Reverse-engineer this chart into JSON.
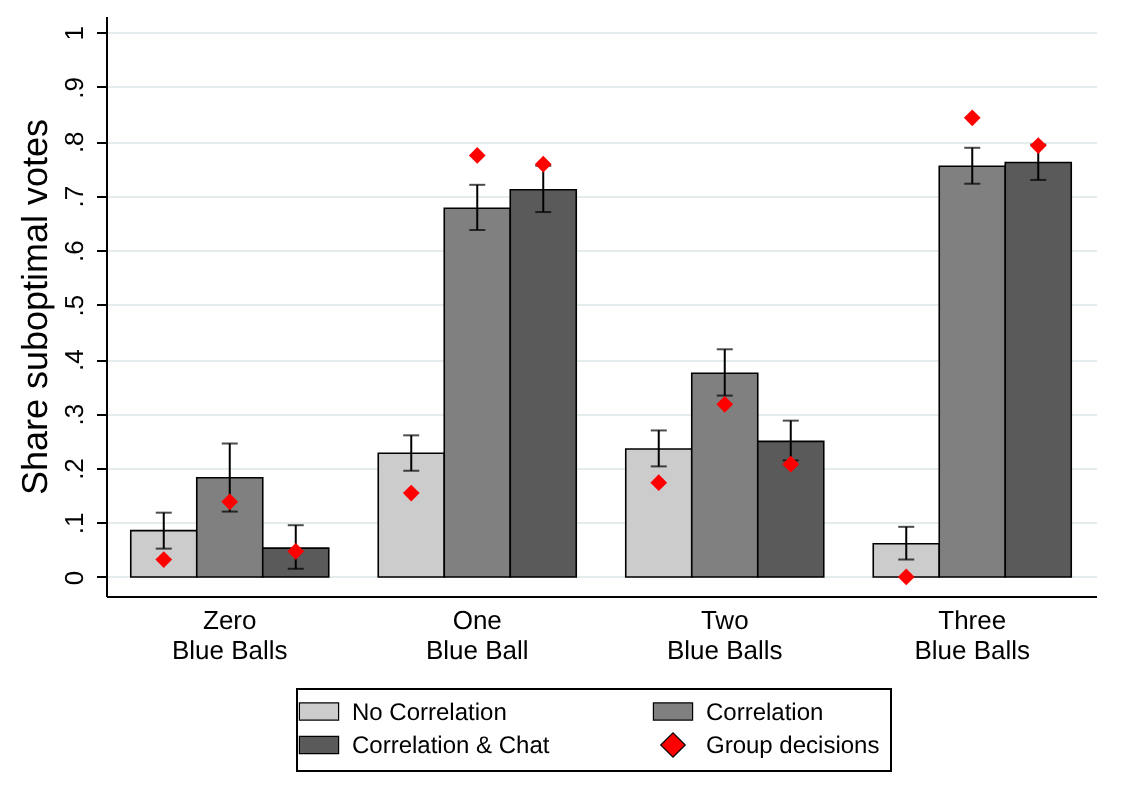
{
  "chart_data": {
    "type": "bar",
    "ylabel": "Share suboptimal votes",
    "categories": [
      "Zero\nBlue Balls",
      "One\nBlue Ball",
      "Two\nBlue Balls",
      "Three\nBlue Balls"
    ],
    "series": [
      {
        "name": "No Correlation",
        "color": "#cccccc",
        "values": [
          0.085,
          0.227,
          0.235,
          0.061
        ],
        "errors": [
          [
            0.052,
            0.118
          ],
          [
            0.195,
            0.26
          ],
          [
            0.203,
            0.269
          ],
          [
            0.032,
            0.092
          ]
        ]
      },
      {
        "name": "Correlation",
        "color": "#808080",
        "values": [
          0.182,
          0.677,
          0.374,
          0.754
        ],
        "errors": [
          [
            0.12,
            0.245
          ],
          [
            0.637,
            0.72
          ],
          [
            0.333,
            0.418
          ],
          [
            0.722,
            0.788
          ]
        ]
      },
      {
        "name": "Correlation & Chat",
        "color": "#5a5a5a",
        "values": [
          0.053,
          0.711,
          0.249,
          0.761
        ],
        "errors": [
          [
            0.015,
            0.095
          ],
          [
            0.67,
            0.755
          ],
          [
            0.214,
            0.287
          ],
          [
            0.729,
            0.794
          ]
        ]
      },
      {
        "name": "Group decisions",
        "type": "scatter",
        "color": "#ff0000",
        "marker": "diamond",
        "x": [
          "Zero\nBlue Balls",
          "Zero\nBlue Balls",
          "Zero\nBlue Balls",
          "One\nBlue Ball",
          "One\nBlue Ball",
          "One\nBlue Ball",
          "Two\nBlue Balls",
          "Two\nBlue Balls",
          "Two\nBlue Balls",
          "Three\nBlue Balls",
          "Three\nBlue Balls",
          "Three\nBlue Balls"
        ],
        "values": [
          0.032,
          0.138,
          0.047,
          0.154,
          0.774,
          0.758,
          0.173,
          0.317,
          0.207,
          0.0,
          0.843,
          0.792
        ]
      }
    ],
    "ylim": [
      -0.035,
      1.03
    ],
    "yticks": [
      0,
      {
        "value": 0.1,
        "label": ".1"
      },
      {
        "value": 0.2,
        "label": ".2"
      },
      {
        "value": 0.3,
        "label": ".3"
      },
      {
        "value": 0.4,
        "label": ".4"
      },
      {
        "value": 0.5,
        "label": ".5"
      },
      {
        "value": 0.6,
        "label": ".6"
      },
      {
        "value": 0.7,
        "label": ".7"
      },
      {
        "value": 0.8,
        "label": ".8"
      },
      {
        "value": 0.9,
        "label": ".9"
      },
      1
    ],
    "grid": "y",
    "legend": "bottom"
  }
}
